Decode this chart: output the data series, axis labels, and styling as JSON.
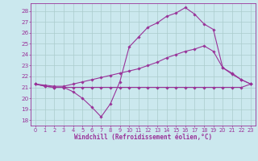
{
  "bg_color": "#cbe8ee",
  "line_color": "#993399",
  "grid_color": "#aacccc",
  "xlabel": "Windchill (Refroidissement éolien,°C)",
  "xlim": [
    -0.5,
    23.5
  ],
  "ylim": [
    17.5,
    28.7
  ],
  "yticks": [
    18,
    19,
    20,
    21,
    22,
    23,
    24,
    25,
    26,
    27,
    28
  ],
  "xticks": [
    0,
    1,
    2,
    3,
    4,
    5,
    6,
    7,
    8,
    9,
    10,
    11,
    12,
    13,
    14,
    15,
    16,
    17,
    18,
    19,
    20,
    21,
    22,
    23
  ],
  "line1_x": [
    0,
    1,
    2,
    3,
    4,
    5,
    6,
    7,
    8,
    9,
    10,
    11,
    12,
    13,
    14,
    15,
    16,
    17,
    18,
    19,
    20,
    21,
    22,
    23
  ],
  "line1_y": [
    21.3,
    21.1,
    21.0,
    21.0,
    21.0,
    21.0,
    21.0,
    21.0,
    21.0,
    21.0,
    21.0,
    21.0,
    21.0,
    21.0,
    21.0,
    21.0,
    21.0,
    21.0,
    21.0,
    21.0,
    21.0,
    21.0,
    21.0,
    21.3
  ],
  "line2_x": [
    0,
    1,
    2,
    3,
    4,
    5,
    6,
    7,
    8,
    9,
    10,
    11,
    12,
    13,
    14,
    15,
    16,
    17,
    18,
    19,
    20,
    21,
    22,
    23
  ],
  "line2_y": [
    21.3,
    21.2,
    21.1,
    21.1,
    21.3,
    21.5,
    21.7,
    21.9,
    22.1,
    22.3,
    22.5,
    22.7,
    23.0,
    23.3,
    23.7,
    24.0,
    24.3,
    24.5,
    24.8,
    24.3,
    22.8,
    22.3,
    21.7,
    21.3
  ],
  "line3_x": [
    0,
    1,
    2,
    3,
    4,
    5,
    6,
    7,
    8,
    9,
    10,
    11,
    12,
    13,
    14,
    15,
    16,
    17,
    18,
    19,
    20,
    21,
    22,
    23
  ],
  "line3_y": [
    21.3,
    21.1,
    21.0,
    21.0,
    20.6,
    20.0,
    19.2,
    18.3,
    19.5,
    21.5,
    24.7,
    25.6,
    26.5,
    26.9,
    27.5,
    27.8,
    28.3,
    27.7,
    26.8,
    26.3,
    22.8,
    22.2,
    21.7,
    21.3
  ]
}
